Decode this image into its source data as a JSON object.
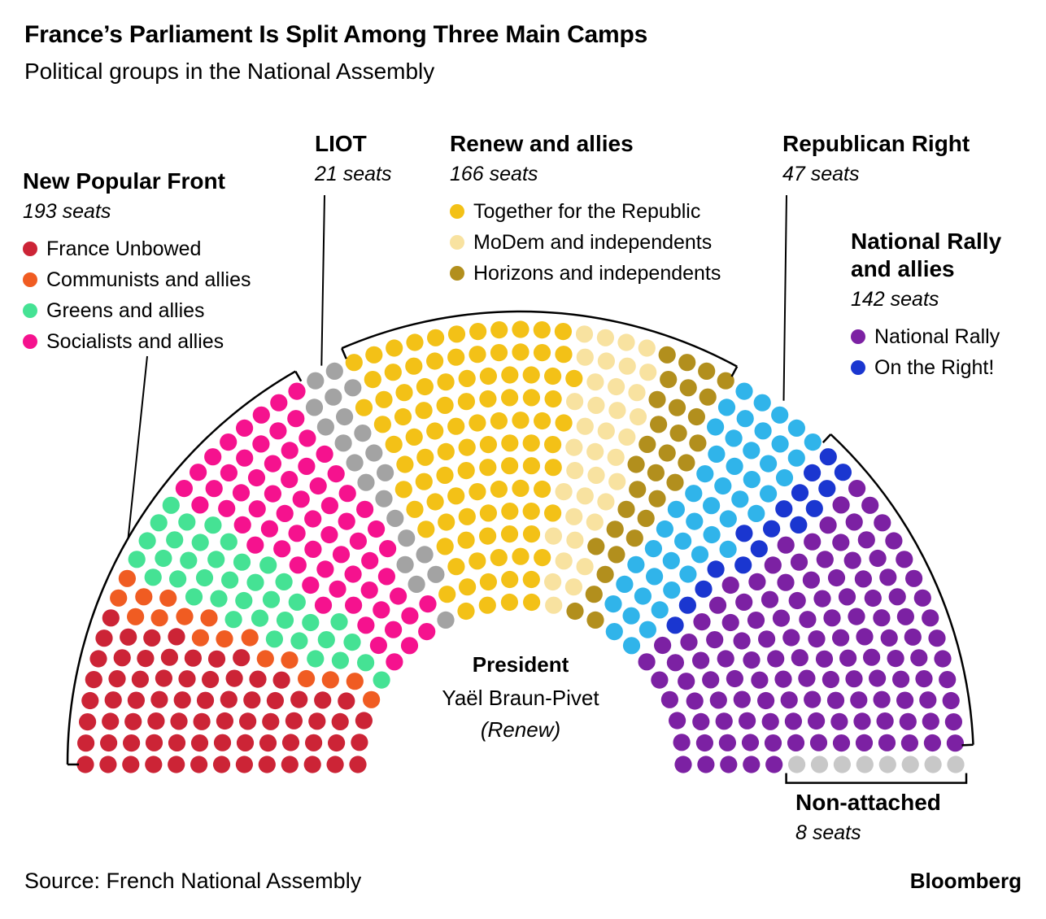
{
  "chart_data": {
    "type": "parliament-hemicycle",
    "title": "France’s Parliament Is Split Among Three Main Camps",
    "subtitle": "Political groups in the National Assembly",
    "total_seats": 577,
    "rows": 13,
    "center_label": {
      "role": "President",
      "name": "Yaël Braun-Pivet",
      "party": "(Renew)"
    },
    "groups": [
      {
        "name": "New Popular Front",
        "seats": 193,
        "seats_label": "193 seats",
        "legend": [
          {
            "label": "France Unbowed",
            "color": "#cc2436"
          },
          {
            "label": "Communists and allies",
            "color": "#f05c22"
          },
          {
            "label": "Greens and allies",
            "color": "#45e294"
          },
          {
            "label": "Socialists and allies",
            "color": "#f5128e"
          }
        ]
      },
      {
        "name": "LIOT",
        "seats": 21,
        "seats_label": "21 seats",
        "legend": []
      },
      {
        "name": "Renew and allies",
        "seats": 166,
        "seats_label": "166 seats",
        "legend": [
          {
            "label": "Together for the Republic",
            "color": "#f3c117"
          },
          {
            "label": "MoDem and independents",
            "color": "#f8e2a0"
          },
          {
            "label": "Horizons and independents",
            "color": "#b28f1d"
          }
        ]
      },
      {
        "name": "Republican Right",
        "seats": 47,
        "seats_label": "47 seats",
        "legend": []
      },
      {
        "name": "National Rally and allies",
        "seats": 142,
        "seats_label": "142 seats",
        "legend": [
          {
            "label": "National Rally",
            "color": "#7c21a3"
          },
          {
            "label": "On the Right!",
            "color": "#1a36d0"
          }
        ]
      },
      {
        "name": "Non-attached",
        "seats": 8,
        "seats_label": "8 seats",
        "legend": []
      }
    ],
    "seating": [
      {
        "party": "France Unbowed",
        "seats": 72,
        "color": "#cc2436"
      },
      {
        "party": "Communists and allies",
        "seats": 17,
        "color": "#f05c22"
      },
      {
        "party": "Greens and allies",
        "seats": 38,
        "color": "#45e294"
      },
      {
        "party": "Socialists and allies",
        "seats": 66,
        "color": "#f5128e"
      },
      {
        "party": "LIOT",
        "seats": 21,
        "color": "#a3a3a3"
      },
      {
        "party": "Together for the Republic",
        "seats": 99,
        "color": "#f3c117"
      },
      {
        "party": "MoDem and independents",
        "seats": 36,
        "color": "#f8e2a0"
      },
      {
        "party": "Horizons and independents",
        "seats": 31,
        "color": "#b28f1d"
      },
      {
        "party": "Republican Right",
        "seats": 47,
        "color": "#30b4ea"
      },
      {
        "party": "On the Right!",
        "seats": 16,
        "color": "#1a36d0"
      },
      {
        "party": "National Rally",
        "seats": 126,
        "color": "#7c21a3"
      },
      {
        "party": "Non-attached",
        "seats": 8,
        "color": "#c8c8c8"
      }
    ]
  },
  "footer": {
    "source": "Source: French National Assembly",
    "brand": "Bloomberg"
  }
}
